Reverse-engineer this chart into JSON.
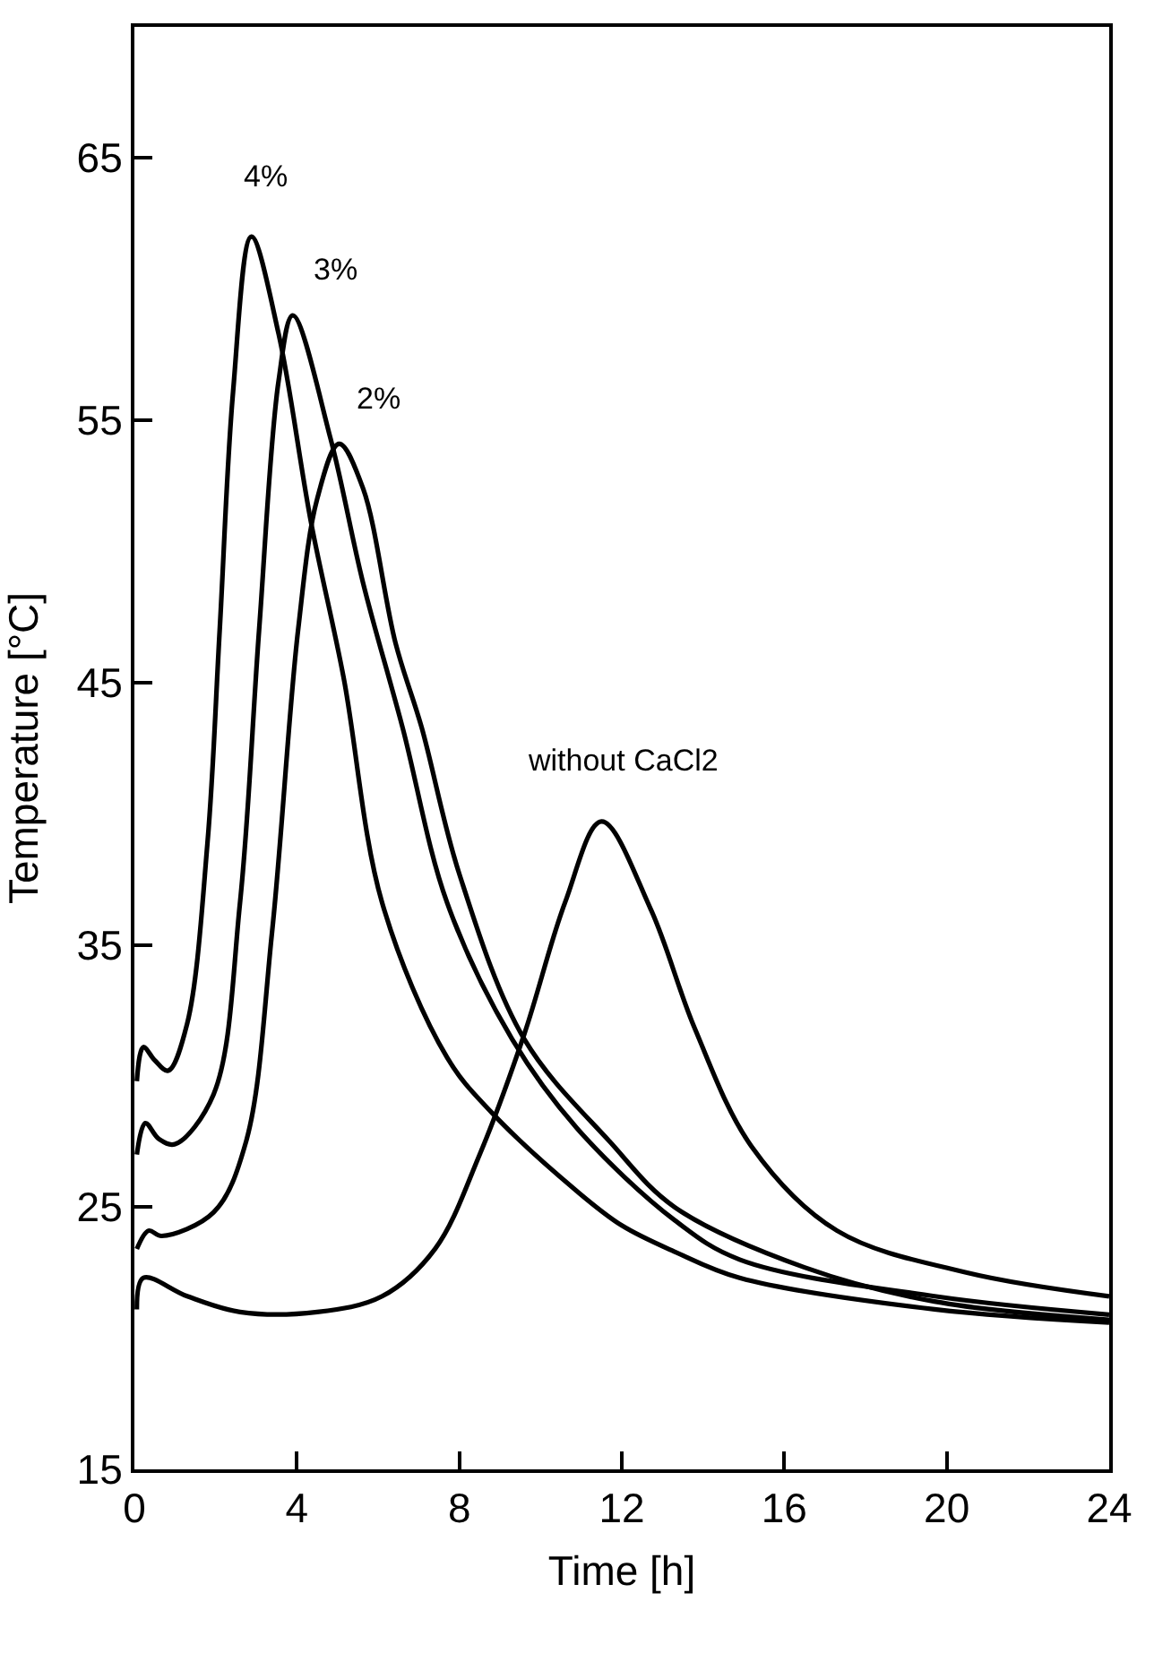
{
  "chart_data": {
    "type": "line",
    "xlabel": "Time [h]",
    "ylabel": "Temperature [°C]",
    "xlim": [
      0,
      24
    ],
    "ylim": [
      15,
      70
    ],
    "xticks": [
      0,
      4,
      8,
      12,
      16,
      20,
      24
    ],
    "yticks": [
      15,
      25,
      35,
      45,
      55,
      65
    ],
    "legend": false,
    "marker": "none",
    "line_style": "solid",
    "series": [
      {
        "name": "4%",
        "color": "#000000",
        "x": [
          0.06,
          0.22,
          0.5,
          0.83,
          1.3,
          1.8,
          2.1,
          2.43,
          2.88,
          3.55,
          4.35,
          5.15,
          6.1,
          7.7,
          8.8,
          10.9,
          12.0,
          13.3,
          14.9,
          19.7,
          24.0
        ],
        "values": [
          29.8,
          31.1,
          30.6,
          30.2,
          32.0,
          38.9,
          47.0,
          56.1,
          62.0,
          58.3,
          51.1,
          45.2,
          36.6,
          30.7,
          28.6,
          25.6,
          24.3,
          23.3,
          22.3,
          21.1,
          20.6
        ]
      },
      {
        "name": "3%",
        "color": "#000000",
        "x": [
          0.06,
          0.27,
          0.6,
          1.0,
          1.95,
          2.6,
          3.07,
          3.55,
          3.9,
          4.83,
          5.63,
          6.6,
          7.7,
          9.3,
          10.9,
          13.3,
          14.9,
          19.7,
          24.0
        ],
        "values": [
          27.0,
          28.2,
          27.6,
          27.4,
          29.3,
          36.6,
          47.0,
          56.5,
          59.0,
          54.3,
          48.8,
          43.3,
          36.6,
          31.4,
          28.0,
          24.5,
          23.0,
          21.6,
          20.9
        ]
      },
      {
        "name": "2%",
        "color": "#000000",
        "x": [
          0.06,
          0.35,
          0.67,
          1.95,
          2.75,
          3.39,
          4.03,
          4.5,
          5.04,
          5.63,
          6.43,
          7.07,
          8.0,
          9.6,
          11.7,
          13.3,
          16.5,
          19.7,
          24.0
        ],
        "values": [
          23.4,
          24.1,
          23.9,
          24.8,
          27.5,
          35.5,
          47.0,
          52.0,
          54.1,
          52.4,
          46.5,
          43.3,
          37.7,
          31.4,
          27.5,
          25.0,
          22.7,
          21.4,
          20.7
        ]
      },
      {
        "name": "without CaCl2",
        "color": "#000000",
        "x": [
          0.06,
          0.22,
          1.3,
          2.6,
          4.5,
          6.1,
          7.4,
          8.5,
          9.6,
          10.6,
          11.5,
          12.7,
          13.8,
          15.2,
          17.3,
          20.5,
          24.0
        ],
        "values": [
          21.1,
          22.3,
          21.6,
          21.0,
          21.0,
          21.6,
          23.4,
          27.0,
          31.6,
          36.6,
          39.7,
          36.4,
          31.8,
          27.3,
          24.1,
          22.5,
          21.6
        ]
      }
    ]
  }
}
